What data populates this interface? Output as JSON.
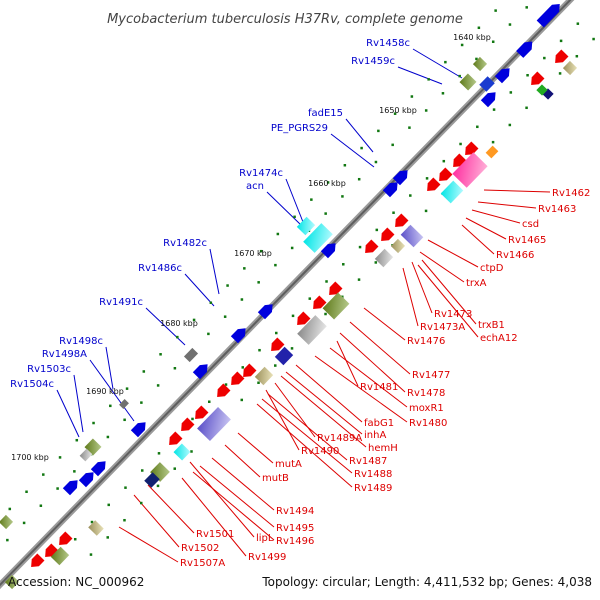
{
  "title": "Mycobacterium tuberculosis H37Rv, complete genome",
  "colors": {
    "backbone": "#808080",
    "label_top": "#0000cc",
    "label_bottom": "#dd0000",
    "feature_blue": "#0000dd",
    "feature_red": "#ee0000",
    "tick": "#117711"
  },
  "kbp_markers": [
    "1640 kbp",
    "1650 kbp",
    "1660 kbp",
    "1670 kbp",
    "1680 kbp",
    "1690 kbp",
    "1700 kbp"
  ],
  "labels_top": [
    "Rv1458c",
    "Rv1459c",
    "fadE15",
    "PE_PGRS29",
    "Rv1474c",
    "acn",
    "Rv1482c",
    "Rv1486c",
    "Rv1491c",
    "Rv1498c",
    "Rv1498A",
    "Rv1503c",
    "Rv1504c"
  ],
  "labels_bottom": [
    "Rv1462",
    "Rv1463",
    "csd",
    "Rv1465",
    "Rv1466",
    "ctpD",
    "trxA",
    "Rv1473",
    "Rv1473A",
    "trxB1",
    "echA12",
    "Rv1476",
    "Rv1477",
    "Rv1478",
    "Rv1481",
    "moxR1",
    "Rv1480",
    "fabG1",
    "inhA",
    "hemH",
    "Rv1489A",
    "Rv1490",
    "Rv1487",
    "Rv1488",
    "Rv1489",
    "mutA",
    "mutB",
    "Rv1494",
    "Rv1495",
    "Rv1496",
    "lipL",
    "Rv1499",
    "Rv1501",
    "Rv1502",
    "Rv1507A"
  ],
  "footer": {
    "accession": "Accession: NC_000962",
    "topology": "Topology: circular; Length: 4,411,532 bp; Genes: 4,038"
  }
}
